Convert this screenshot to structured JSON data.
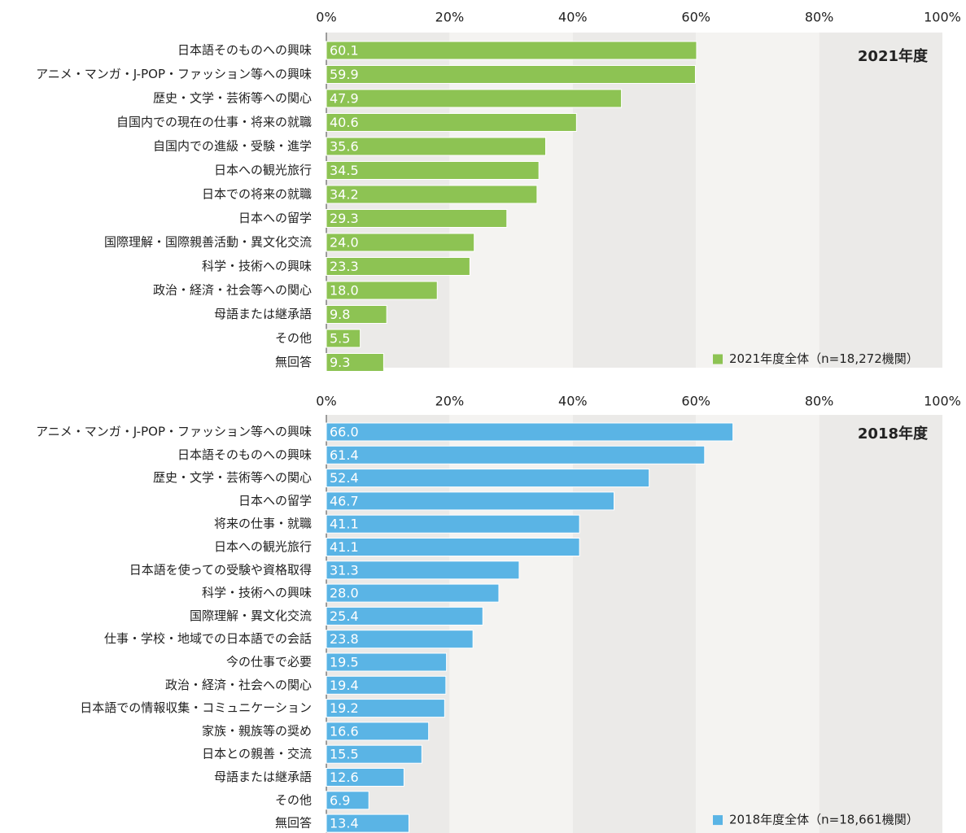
{
  "chart_data": [
    {
      "type": "bar",
      "orientation": "horizontal",
      "annotation": "2021年度",
      "categories": [
        "日本語そのものへの興味",
        "アニメ・マンガ・J-POP・ファッション等への興味",
        "歴史・文学・芸術等への関心",
        "自国内での現在の仕事・将来の就職",
        "自国内での進級・受験・進学",
        "日本への観光旅行",
        "日本での将来の就職",
        "日本への留学",
        "国際理解・国際親善活動・異文化交流",
        "科学・技術への興味",
        "政治・経済・社会等への関心",
        "母語または継承語",
        "その他",
        "無回答"
      ],
      "series": [
        {
          "name": "2021年度全体（n=18,272機関）",
          "color": "#8dc353",
          "values": [
            60.1,
            59.9,
            47.9,
            40.6,
            35.6,
            34.5,
            34.2,
            29.3,
            24.0,
            23.3,
            18.0,
            9.8,
            5.5,
            9.3
          ],
          "value_labels": [
            "60.1",
            "59.9",
            "47.9",
            "40.6",
            "35.6",
            "34.5",
            "34.2",
            "29.3",
            "24.0",
            "23.3",
            "18.0",
            "9.8",
            "5.5",
            "9.3"
          ]
        }
      ],
      "xlim": [
        0,
        100
      ],
      "xticks": [
        {
          "value": 0,
          "label": "0%"
        },
        {
          "value": 20,
          "label": "20%"
        },
        {
          "value": 40,
          "label": "40%"
        },
        {
          "value": 60,
          "label": "60%"
        },
        {
          "value": 80,
          "label": "80%"
        },
        {
          "value": 100,
          "label": "100%"
        }
      ],
      "legend": "lower right"
    },
    {
      "type": "bar",
      "orientation": "horizontal",
      "annotation": "2018年度",
      "categories": [
        "アニメ・マンガ・J-POP・ファッション等への興味",
        "日本語そのものへの興味",
        "歴史・文学・芸術等への関心",
        "日本への留学",
        "将来の仕事・就職",
        "日本への観光旅行",
        "日本語を使っての受験や資格取得",
        "科学・技術への興味",
        "国際理解・異文化交流",
        "仕事・学校・地域での日本語での会話",
        "今の仕事で必要",
        "政治・経済・社会への関心",
        "日本語での情報収集・コミュニケーション",
        "家族・親族等の奨め",
        "日本との親善・交流",
        "母語または継承語",
        "その他",
        "無回答"
      ],
      "series": [
        {
          "name": "2018年度全体（n=18,661機関）",
          "color": "#5ab4e5",
          "values": [
            66.0,
            61.4,
            52.4,
            46.7,
            41.1,
            41.1,
            31.3,
            28.0,
            25.4,
            23.8,
            19.5,
            19.4,
            19.2,
            16.6,
            15.5,
            12.6,
            6.9,
            13.4
          ],
          "value_labels": [
            "66.0",
            "61.4",
            "52.4",
            "46.7",
            "41.1",
            "41.1",
            "31.3",
            "28.0",
            "25.4",
            "23.8",
            "19.5",
            "19.4",
            "19.2",
            "16.6",
            "15.5",
            "12.6",
            "6.9",
            "13.4"
          ]
        }
      ],
      "xlim": [
        0,
        100
      ],
      "xticks": [
        {
          "value": 0,
          "label": "0%"
        },
        {
          "value": 20,
          "label": "20%"
        },
        {
          "value": 40,
          "label": "40%"
        },
        {
          "value": 60,
          "label": "60%"
        },
        {
          "value": 80,
          "label": "80%"
        },
        {
          "value": 100,
          "label": "100%"
        }
      ],
      "legend": "lower right"
    }
  ]
}
